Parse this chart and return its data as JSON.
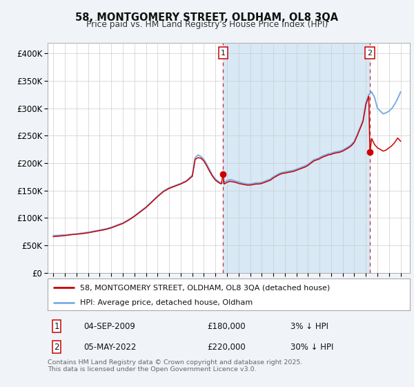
{
  "title_line1": "58, MONTGOMERY STREET, OLDHAM, OL8 3QA",
  "title_line2": "Price paid vs. HM Land Registry's House Price Index (HPI)",
  "ylim": [
    0,
    420000
  ],
  "yticks": [
    0,
    50000,
    100000,
    150000,
    200000,
    250000,
    300000,
    350000,
    400000
  ],
  "ytick_labels": [
    "£0",
    "£50K",
    "£100K",
    "£150K",
    "£200K",
    "£250K",
    "£300K",
    "£350K",
    "£400K"
  ],
  "legend_line1": "58, MONTGOMERY STREET, OLDHAM, OL8 3QA (detached house)",
  "legend_line2": "HPI: Average price, detached house, Oldham",
  "annotation1_label": "1",
  "annotation1_date": "04-SEP-2009",
  "annotation1_price": "£180,000",
  "annotation1_hpi": "3% ↓ HPI",
  "annotation2_label": "2",
  "annotation2_date": "05-MAY-2022",
  "annotation2_price": "£220,000",
  "annotation2_hpi": "30% ↓ HPI",
  "footer": "Contains HM Land Registry data © Crown copyright and database right 2025.\nThis data is licensed under the Open Government Licence v3.0.",
  "red_color": "#cc0000",
  "blue_color": "#7aace0",
  "vline_color": "#cc0000",
  "bg_color": "#f0f4f8",
  "plot_bg": "#ffffff",
  "shade_color": "#d8e8f5",
  "hpi_x": [
    1995,
    1995.5,
    1996,
    1996.5,
    1997,
    1997.5,
    1998,
    1998.5,
    1999,
    1999.5,
    2000,
    2000.5,
    2001,
    2001.5,
    2002,
    2002.5,
    2003,
    2003.5,
    2004,
    2004.5,
    2005,
    2005.5,
    2006,
    2006.5,
    2007,
    2007.25,
    2007.5,
    2007.75,
    2008,
    2008.25,
    2008.5,
    2008.75,
    2009,
    2009.25,
    2009.5,
    2009.75,
    2010,
    2010.25,
    2010.5,
    2010.75,
    2011,
    2011.25,
    2011.5,
    2011.75,
    2012,
    2012.25,
    2012.5,
    2012.75,
    2013,
    2013.25,
    2013.5,
    2013.75,
    2014,
    2014.25,
    2014.5,
    2014.75,
    2015,
    2015.25,
    2015.5,
    2015.75,
    2016,
    2016.25,
    2016.5,
    2016.75,
    2017,
    2017.25,
    2017.5,
    2017.75,
    2018,
    2018.25,
    2018.5,
    2018.75,
    2019,
    2019.25,
    2019.5,
    2019.75,
    2020,
    2020.25,
    2020.5,
    2020.75,
    2021,
    2021.25,
    2021.5,
    2021.75,
    2022,
    2022.25,
    2022.5,
    2022.75,
    2023,
    2023.25,
    2023.5,
    2023.75,
    2024,
    2024.25,
    2024.5,
    2024.75,
    2025
  ],
  "hpi_y": [
    68000,
    68500,
    69000,
    70000,
    71000,
    72500,
    74000,
    76000,
    78000,
    80000,
    83000,
    87000,
    91000,
    97000,
    104000,
    112000,
    120000,
    130000,
    140000,
    149000,
    155000,
    159000,
    163000,
    168000,
    178000,
    210000,
    215000,
    212000,
    207000,
    198000,
    188000,
    178000,
    171000,
    167000,
    163000,
    165000,
    168000,
    170000,
    169000,
    167000,
    166000,
    164000,
    163000,
    162000,
    162000,
    163000,
    164000,
    164000,
    165000,
    167000,
    169000,
    171000,
    175000,
    178000,
    181000,
    183000,
    184000,
    185000,
    186000,
    187000,
    189000,
    191000,
    193000,
    195000,
    198000,
    202000,
    206000,
    208000,
    210000,
    213000,
    215000,
    217000,
    218000,
    220000,
    221000,
    222000,
    224000,
    227000,
    230000,
    234000,
    240000,
    252000,
    265000,
    278000,
    310000,
    325000,
    330000,
    320000,
    300000,
    295000,
    290000,
    292000,
    295000,
    300000,
    308000,
    318000,
    330000
  ],
  "red_x": [
    1995,
    1995.5,
    1996,
    1996.5,
    1997,
    1997.5,
    1998,
    1998.5,
    1999,
    1999.5,
    2000,
    2000.5,
    2001,
    2001.5,
    2002,
    2002.5,
    2003,
    2003.5,
    2004,
    2004.5,
    2005,
    2005.5,
    2006,
    2006.5,
    2007,
    2007.25,
    2007.5,
    2007.75,
    2008,
    2008.25,
    2008.5,
    2008.75,
    2009,
    2009.25,
    2009.5,
    2009.67,
    2009.75,
    2010,
    2010.25,
    2010.5,
    2010.75,
    2011,
    2011.25,
    2011.5,
    2011.75,
    2012,
    2012.25,
    2012.5,
    2012.75,
    2013,
    2013.25,
    2013.5,
    2013.75,
    2014,
    2014.25,
    2014.5,
    2014.75,
    2015,
    2015.25,
    2015.5,
    2015.75,
    2016,
    2016.25,
    2016.5,
    2016.75,
    2017,
    2017.25,
    2017.5,
    2017.75,
    2018,
    2018.25,
    2018.5,
    2018.75,
    2019,
    2019.25,
    2019.5,
    2019.75,
    2020,
    2020.25,
    2020.5,
    2020.75,
    2021,
    2021.25,
    2021.5,
    2021.75,
    2022,
    2022.25,
    2022.35,
    2022.5,
    2022.75,
    2023,
    2023.25,
    2023.5,
    2023.75,
    2024,
    2024.25,
    2024.5,
    2024.75,
    2025
  ],
  "red_y": [
    66000,
    67000,
    68000,
    69500,
    70500,
    71500,
    73000,
    75000,
    77000,
    79000,
    82000,
    86000,
    90000,
    96000,
    103000,
    111000,
    119000,
    129000,
    139000,
    148000,
    154000,
    158000,
    162000,
    167000,
    176000,
    207000,
    210000,
    209000,
    204000,
    195000,
    185000,
    176000,
    169000,
    165000,
    162000,
    180000,
    162000,
    165000,
    167000,
    166000,
    165000,
    163000,
    162000,
    161000,
    160000,
    160000,
    161000,
    162000,
    162000,
    163000,
    165000,
    167000,
    169000,
    173000,
    176000,
    179000,
    181000,
    182000,
    183000,
    184000,
    185000,
    187000,
    189000,
    191000,
    193000,
    196000,
    200000,
    204000,
    206000,
    208000,
    211000,
    213000,
    215000,
    216000,
    218000,
    219000,
    220000,
    222000,
    225000,
    228000,
    232000,
    238000,
    250000,
    263000,
    276000,
    307000,
    322000,
    220000,
    245000,
    234000,
    228000,
    225000,
    222000,
    224000,
    228000,
    232000,
    238000,
    246000,
    240000
  ],
  "xlim": [
    1994.5,
    2025.8
  ],
  "xtick_start": 1995,
  "xtick_end": 2025,
  "ann1_x": 2009.67,
  "ann1_y": 180000,
  "ann2_x": 2022.35,
  "ann2_y": 220000,
  "shade_x1": 2009.67,
  "shade_x2": 2022.35
}
